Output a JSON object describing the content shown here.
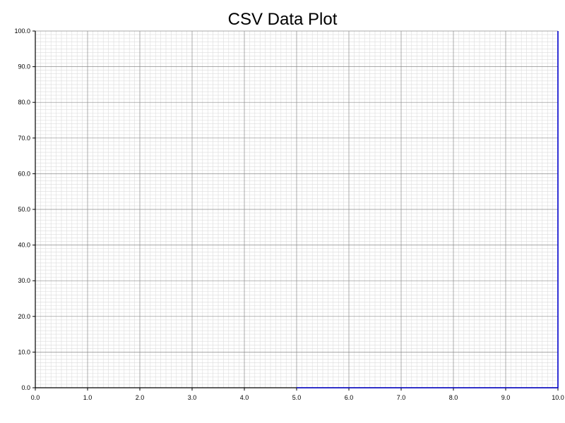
{
  "chart_data": {
    "type": "line",
    "title": "CSV Data Plot",
    "xlabel": "",
    "ylabel": "",
    "xlim": [
      0,
      10
    ],
    "ylim": [
      0,
      100
    ],
    "x_ticks": [
      "0.0",
      "1.0",
      "2.0",
      "3.0",
      "4.0",
      "5.0",
      "6.0",
      "7.0",
      "8.0",
      "9.0",
      "10.0"
    ],
    "y_ticks": [
      "0.0",
      "10.0",
      "20.0",
      "30.0",
      "40.0",
      "50.0",
      "60.0",
      "70.0",
      "80.0",
      "90.0",
      "100.0"
    ],
    "grid": true,
    "minor_grid": true,
    "legend": "none",
    "series": [
      {
        "color": "#0000cc",
        "x": [
          5,
          6,
          7,
          8,
          9,
          10,
          10
        ],
        "y": [
          0,
          0,
          0,
          0,
          0,
          0,
          100
        ]
      }
    ]
  }
}
